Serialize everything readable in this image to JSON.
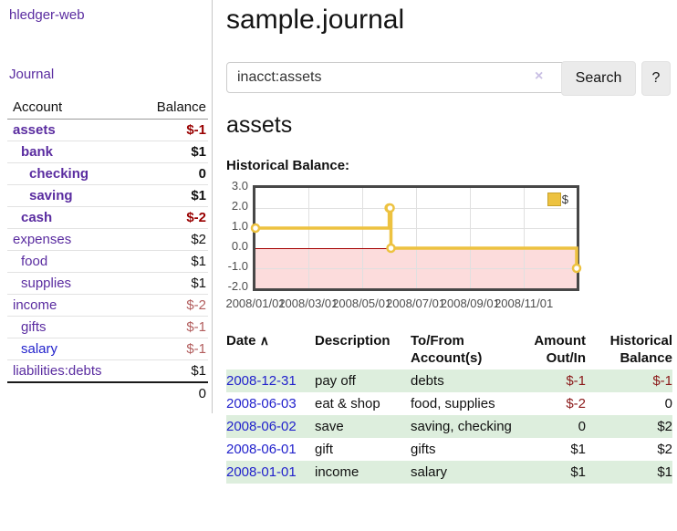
{
  "app": {
    "brand": "hledger-web",
    "nav_journal": "Journal"
  },
  "sidebar": {
    "header": {
      "account": "Account",
      "balance": "Balance"
    },
    "accounts": [
      {
        "name": "assets",
        "balance": "$-1",
        "depth": 1,
        "bold": true,
        "neg": true,
        "unvisited": false
      },
      {
        "name": "bank",
        "balance": "$1",
        "depth": 2,
        "bold": true,
        "neg": false,
        "unvisited": false
      },
      {
        "name": "checking",
        "balance": "0",
        "depth": 3,
        "bold": true,
        "neg": false,
        "unvisited": false
      },
      {
        "name": "saving",
        "balance": "$1",
        "depth": 3,
        "bold": true,
        "neg": false,
        "unvisited": false
      },
      {
        "name": "cash",
        "balance": "$-2",
        "depth": 2,
        "bold": true,
        "neg": true,
        "unvisited": false
      },
      {
        "name": "expenses",
        "balance": "$2",
        "depth": 1,
        "bold": false,
        "neg": false,
        "unvisited": false
      },
      {
        "name": "food",
        "balance": "$1",
        "depth": 2,
        "bold": false,
        "neg": false,
        "unvisited": false
      },
      {
        "name": "supplies",
        "balance": "$1",
        "depth": 2,
        "bold": false,
        "neg": false,
        "unvisited": false
      },
      {
        "name": "income",
        "balance": "$-2",
        "depth": 1,
        "bold": false,
        "neg": true,
        "unvisited": false
      },
      {
        "name": "gifts",
        "balance": "$-1",
        "depth": 2,
        "bold": false,
        "neg": true,
        "unvisited": false
      },
      {
        "name": "salary",
        "balance": "$-1",
        "depth": 2,
        "bold": false,
        "neg": true,
        "unvisited": true
      },
      {
        "name": "liabilities:debts",
        "balance": "$1",
        "depth": 1,
        "bold": false,
        "neg": false,
        "unvisited": false
      }
    ],
    "total": "0"
  },
  "header": {
    "title": "sample.journal"
  },
  "search": {
    "value": "inacct:assets",
    "clear_icon": "×",
    "button": "Search",
    "help_button": "?"
  },
  "account_page": {
    "heading": "assets"
  },
  "chart_data": {
    "type": "line",
    "step": true,
    "title": "Historical Balance:",
    "legend": "$",
    "legend_position": "top-right",
    "series": [
      {
        "name": "$",
        "points": [
          [
            "2008-01-01",
            1
          ],
          [
            "2008-06-01",
            2
          ],
          [
            "2008-06-02",
            2
          ],
          [
            "2008-06-03",
            0
          ],
          [
            "2008-12-31",
            -1
          ]
        ]
      }
    ],
    "ylim": [
      -2,
      3
    ],
    "ytick_labels": [
      "3.0",
      "2.0",
      "1.0",
      "0.0",
      "-1.0",
      "-2.0"
    ],
    "ytick_values": [
      3,
      2,
      1,
      0,
      -1,
      -2
    ],
    "xtick_labels": [
      "2008/01/01",
      "2008/03/01",
      "2008/05/01",
      "2008/07/01",
      "2008/09/01",
      "2008/11/01"
    ],
    "xlim": [
      "2008-01-01",
      "2008-12-31"
    ],
    "line_color": "#edc240",
    "negative_region_color": "#fcdcdc",
    "zero_line_color": "#a40000"
  },
  "register": {
    "columns": {
      "date": "Date",
      "description": "Description",
      "accounts": "To/From Account(s)",
      "amount": "Amount Out/In",
      "balance": "Historical Balance"
    },
    "sort_indicator": "∧",
    "rows": [
      {
        "date": "2008-12-31",
        "description": "pay off",
        "accounts": "debts",
        "amount": "$-1",
        "balance": "$-1"
      },
      {
        "date": "2008-06-03",
        "description": "eat & shop",
        "accounts": "food, supplies",
        "amount": "$-2",
        "balance": "0"
      },
      {
        "date": "2008-06-02",
        "description": "save",
        "accounts": "saving, checking",
        "amount": "0",
        "balance": "$2"
      },
      {
        "date": "2008-06-01",
        "description": "gift",
        "accounts": "gifts",
        "amount": "$1",
        "balance": "$2"
      },
      {
        "date": "2008-01-01",
        "description": "income",
        "accounts": "salary",
        "amount": "$1",
        "balance": "$1"
      }
    ]
  }
}
